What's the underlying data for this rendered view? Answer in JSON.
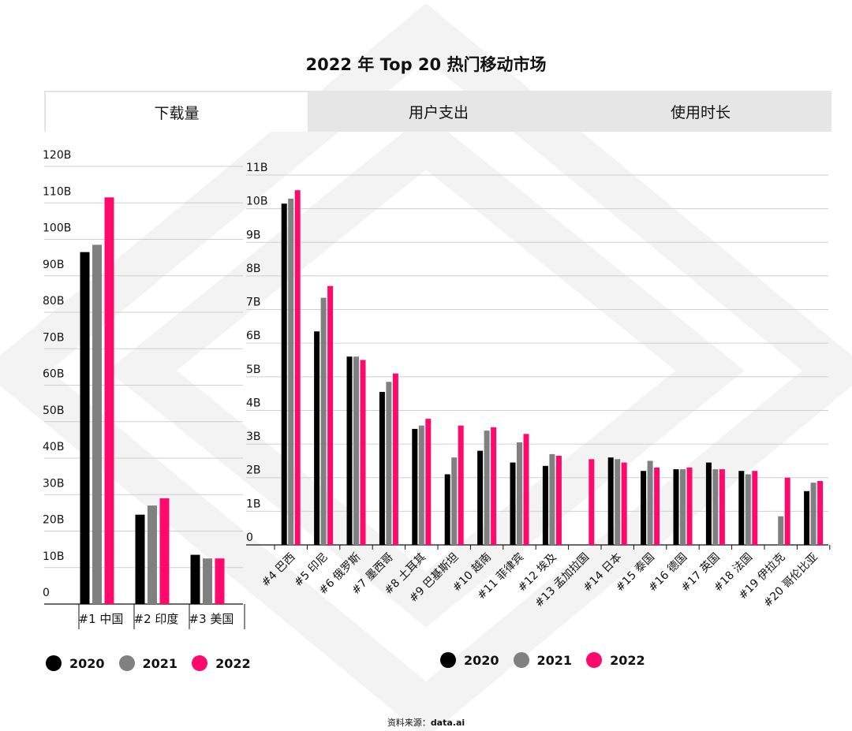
{
  "title": "2022 年 Top 20 热门移动市场",
  "tabs": [
    {
      "label": "下载量",
      "active": true
    },
    {
      "label": "用户支出",
      "active": false
    },
    {
      "label": "使用时长",
      "active": false
    }
  ],
  "colors": {
    "y2020": "#000000",
    "y2021": "#808080",
    "y2022": "#ff0a6c",
    "tab_inactive": "#e6e6e6",
    "grid": "#cfcfcf"
  },
  "legend": [
    "2020",
    "2021",
    "2022"
  ],
  "source": {
    "label": "资料来源：",
    "name": "data.ai"
  },
  "chart_data": [
    {
      "type": "bar",
      "title": "",
      "categories": [
        "#1 中国",
        "#2 印度",
        "#3 美国"
      ],
      "yticks": [
        "0",
        "10B",
        "20B",
        "30B",
        "40B",
        "50B",
        "60B",
        "70B",
        "80B",
        "90B",
        "100B",
        "110B",
        "120B"
      ],
      "ylim": [
        0,
        120
      ],
      "unit": "B",
      "series": [
        {
          "name": "2020",
          "values": [
            96.5,
            24.5,
            13.5
          ]
        },
        {
          "name": "2021",
          "values": [
            98.5,
            27,
            12.5
          ]
        },
        {
          "name": "2022",
          "values": [
            111.5,
            29,
            12.5
          ]
        }
      ],
      "grid": true,
      "legend_position": "bottom-left"
    },
    {
      "type": "bar",
      "title": "",
      "categories": [
        "#4 巴西",
        "#5 印尼",
        "#6 俄罗斯",
        "#7 墨西哥",
        "#8 土耳其",
        "#9 巴基斯坦",
        "#10 越南",
        "#11 菲律宾",
        "#12 埃及",
        "#13 孟加拉国",
        "#14 日本",
        "#15 泰国",
        "#16 德国",
        "#17 英国",
        "#18 法国",
        "#19 伊拉克",
        "#20 哥伦比亚"
      ],
      "yticks": [
        "0",
        "1B",
        "2B",
        "3B",
        "4B",
        "5B",
        "6B",
        "7B",
        "8B",
        "9B",
        "10B",
        "11B"
      ],
      "ylim": [
        0,
        11
      ],
      "unit": "B",
      "series": [
        {
          "name": "2020",
          "values": [
            10.15,
            6.35,
            5.6,
            4.55,
            3.45,
            2.1,
            2.8,
            2.45,
            2.35,
            null,
            2.6,
            2.2,
            2.25,
            2.45,
            2.2,
            null,
            1.6
          ]
        },
        {
          "name": "2021",
          "values": [
            10.3,
            7.35,
            5.6,
            4.85,
            3.55,
            2.6,
            3.4,
            3.05,
            2.7,
            null,
            2.55,
            2.5,
            2.25,
            2.25,
            2.1,
            0.85,
            1.85
          ]
        },
        {
          "name": "2022",
          "values": [
            10.55,
            7.7,
            5.5,
            5.1,
            3.75,
            3.55,
            3.5,
            3.3,
            2.65,
            2.55,
            2.45,
            2.3,
            2.3,
            2.25,
            2.2,
            2.0,
            1.9
          ]
        }
      ],
      "grid": true,
      "legend_position": "bottom-center"
    }
  ]
}
